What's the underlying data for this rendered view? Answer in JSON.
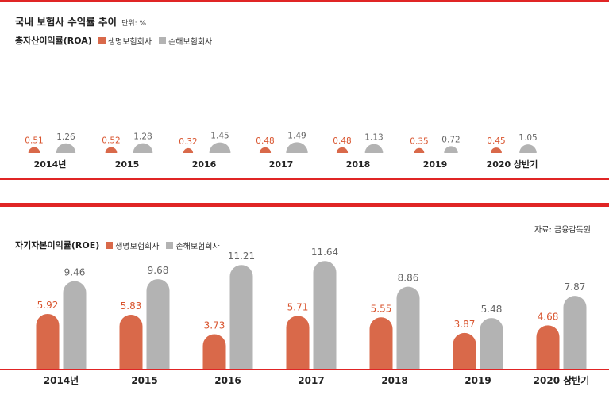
{
  "header": {
    "title": "국내 보험사 수익률 추이",
    "unit": "단위: %"
  },
  "source": "자료: 금융감독원",
  "colors": {
    "life": "#d9694a",
    "nonlife": "#b3b3b3",
    "rule": "#e02525"
  },
  "chart_data": [
    {
      "type": "bar",
      "title": "총자산이익률(ROA)",
      "categories": [
        "2014년",
        "2015",
        "2016",
        "2017",
        "2018",
        "2019",
        "2020 상반기"
      ],
      "series": [
        {
          "name": "생명보험회사",
          "values": [
            "0.51",
            "0.52",
            "0.32",
            "0.48",
            "0.48",
            "0.35",
            "0.45"
          ]
        },
        {
          "name": "손해보험회사",
          "values": [
            "1.26",
            "1.28",
            "1.45",
            "1.49",
            "1.13",
            "0.72",
            "1.05"
          ]
        }
      ],
      "ylim": [
        0,
        1.5
      ],
      "legend": "top-left"
    },
    {
      "type": "bar",
      "title": "자기자본이익률(ROE)",
      "categories": [
        "2014년",
        "2015",
        "2016",
        "2017",
        "2018",
        "2019",
        "2020 상반기"
      ],
      "series": [
        {
          "name": "생명보험회사",
          "values": [
            "5.92",
            "5.83",
            "3.73",
            "5.71",
            "5.55",
            "3.87",
            "4.68"
          ]
        },
        {
          "name": "손해보험회사",
          "values": [
            "9.46",
            "9.68",
            "11.21",
            "11.64",
            "8.86",
            "5.48",
            "7.87"
          ]
        }
      ],
      "ylim": [
        0,
        12
      ],
      "legend": "top-left"
    }
  ]
}
